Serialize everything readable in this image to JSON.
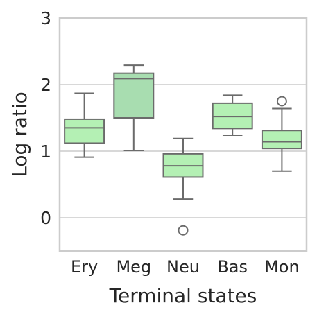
{
  "chart_data": {
    "type": "box",
    "xlabel": "Terminal states",
    "ylabel": "Log ratio",
    "ylim": [
      -0.5,
      3.0
    ],
    "yticks": [
      0,
      1,
      2,
      3
    ],
    "grid": "horizontal",
    "categories": [
      "Ery",
      "Meg",
      "Neu",
      "Bas",
      "Mon"
    ],
    "boxes": [
      {
        "category": "Ery",
        "whisker_low": 0.91,
        "q1": 1.12,
        "median": 1.35,
        "q3": 1.48,
        "whisker_high": 1.87,
        "outliers": [],
        "color": "#b4f0b4"
      },
      {
        "category": "Meg",
        "whisker_low": 1.01,
        "q1": 1.5,
        "median": 2.09,
        "q3": 2.17,
        "whisker_high": 2.29,
        "outliers": [],
        "color": "#a8ddb0"
      },
      {
        "category": "Neu",
        "whisker_low": 0.28,
        "q1": 0.61,
        "median": 0.78,
        "q3": 0.96,
        "whisker_high": 1.19,
        "outliers": [
          -0.19
        ],
        "color": "#b4f0b4"
      },
      {
        "category": "Bas",
        "whisker_low": 1.24,
        "q1": 1.34,
        "median": 1.52,
        "q3": 1.72,
        "whisker_high": 1.84,
        "outliers": [],
        "color": "#b4f0b4"
      },
      {
        "category": "Mon",
        "whisker_low": 0.7,
        "q1": 1.04,
        "median": 1.14,
        "q3": 1.31,
        "whisker_high": 1.64,
        "outliers": [
          1.75
        ],
        "color": "#b4f0b4"
      }
    ],
    "line_color": "#6b6b6b",
    "frame_color": "#cccccc"
  }
}
